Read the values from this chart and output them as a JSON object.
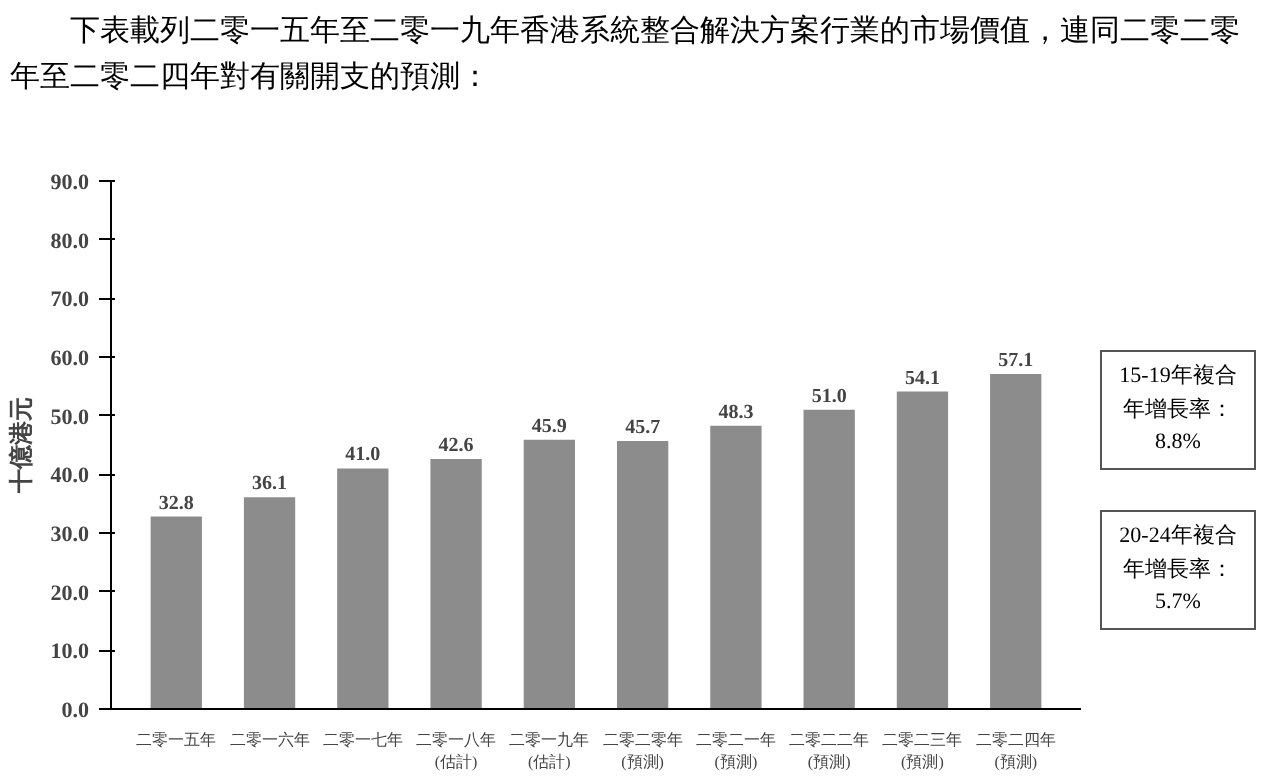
{
  "chart_data": {
    "type": "bar",
    "title": "下表載列二零一五年至二零一九年香港系統整合解決方案行業的市場價值，連同二零二零年至二零二四年對有關開支的預測：",
    "ylabel": "十億港元",
    "categories": [
      "二零一五年",
      "二零一六年",
      "二零一七年",
      "二零一八年\n(估計)",
      "二零一九年\n(估計)",
      "二零二零年\n(預測)",
      "二零二一年\n(預測)",
      "二零二二年\n(預測)",
      "二零二三年\n(預測)",
      "二零二四年\n(預測)"
    ],
    "values": [
      32.8,
      36.1,
      41.0,
      42.6,
      45.9,
      45.7,
      48.3,
      51.0,
      54.1,
      57.1
    ],
    "value_labels": [
      "32.8",
      "36.1",
      "41.0",
      "42.6",
      "45.9",
      "45.7",
      "48.3",
      "51.0",
      "54.1",
      "57.1"
    ],
    "color": "#8c8c8c",
    "ylim": [
      0,
      90
    ],
    "yticks": [
      {
        "value": 0,
        "label": "0.0"
      },
      {
        "value": 10,
        "label": "10.0"
      },
      {
        "value": 20,
        "label": "20.0"
      },
      {
        "value": 30,
        "label": "30.0"
      },
      {
        "value": 40,
        "label": "40.0"
      },
      {
        "value": 50,
        "label": "50.0"
      },
      {
        "value": 60,
        "label": "60.0"
      },
      {
        "value": 70,
        "label": "70.0"
      },
      {
        "value": 80,
        "label": "80.0"
      },
      {
        "value": 90,
        "label": "90.0"
      }
    ],
    "grid": false,
    "annotations": [
      "15-19年複合年增長率：8.8%",
      "20-24年複合年增長率：5.7%"
    ]
  }
}
